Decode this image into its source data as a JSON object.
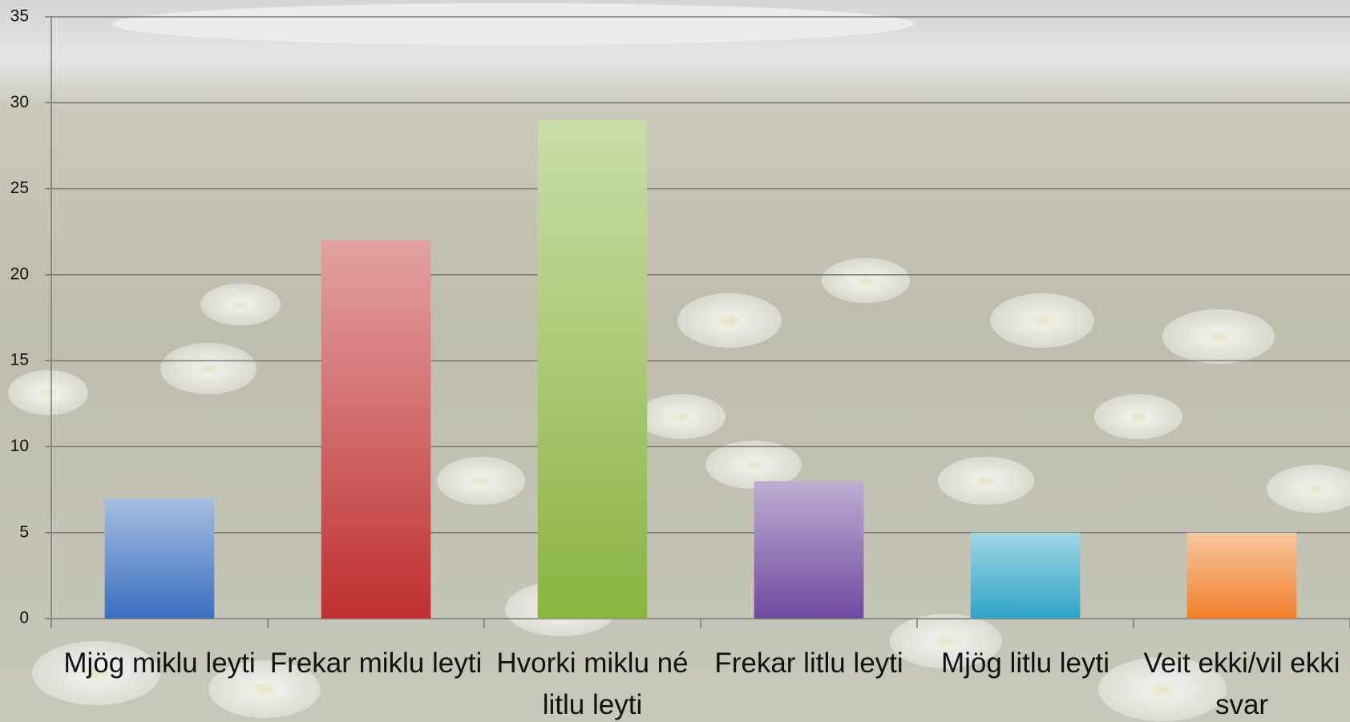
{
  "chart_data": {
    "type": "bar",
    "categories": [
      "Mjög miklu leyti",
      "Frekar miklu leyti",
      "Hvorki miklu né litlu leyti",
      "Frekar litlu leyti",
      "Mjög litlu leyti",
      "Veit ekki/vil ekki svar"
    ],
    "values": [
      7,
      22,
      29,
      8,
      5,
      5
    ],
    "colors": [
      "#3a6fbf",
      "#bf3030",
      "#8ab43f",
      "#6e4a9e",
      "#2fa3c6",
      "#f0802a"
    ],
    "ylim": [
      0,
      35
    ],
    "yticks": [
      0,
      5,
      10,
      15,
      20,
      25,
      30,
      35
    ],
    "grid": true
  }
}
